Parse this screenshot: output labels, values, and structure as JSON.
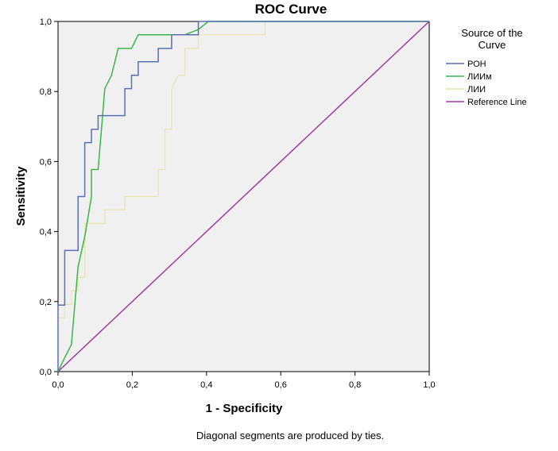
{
  "chart_data": {
    "type": "line",
    "title": "ROC Curve",
    "xlabel": "1 - Specificity",
    "ylabel": "Sensitivity",
    "xlim": [
      0,
      1
    ],
    "ylim": [
      0,
      1
    ],
    "xticks": [
      0,
      0.2,
      0.4,
      0.6,
      0.8,
      1.0
    ],
    "yticks": [
      0,
      0.2,
      0.4,
      0.6,
      0.8,
      1.0
    ],
    "xtick_labels": [
      "0,0",
      "0,2",
      "0,4",
      "0,6",
      "0,8",
      "1,0"
    ],
    "ytick_labels": [
      "0,0",
      "0,2",
      "0,4",
      "0,6",
      "0,8",
      "1,0"
    ],
    "grid": false,
    "legend": {
      "title": "Source of the Curve",
      "position": "right"
    },
    "footnote": "Diagonal segments are produced by ties.",
    "series": [
      {
        "name": "РОН",
        "color": "#5a6fb5",
        "points": [
          [
            0,
            0
          ],
          [
            0,
            0.19
          ],
          [
            0.018,
            0.19
          ],
          [
            0.018,
            0.346
          ],
          [
            0.054,
            0.346
          ],
          [
            0.054,
            0.5
          ],
          [
            0.072,
            0.5
          ],
          [
            0.072,
            0.654
          ],
          [
            0.09,
            0.654
          ],
          [
            0.09,
            0.692
          ],
          [
            0.108,
            0.692
          ],
          [
            0.108,
            0.731
          ],
          [
            0.18,
            0.731
          ],
          [
            0.18,
            0.808
          ],
          [
            0.198,
            0.808
          ],
          [
            0.198,
            0.846
          ],
          [
            0.216,
            0.846
          ],
          [
            0.216,
            0.885
          ],
          [
            0.27,
            0.885
          ],
          [
            0.27,
            0.923
          ],
          [
            0.306,
            0.923
          ],
          [
            0.306,
            0.962
          ],
          [
            0.378,
            0.962
          ],
          [
            0.378,
            1.0
          ],
          [
            1.0,
            1.0
          ]
        ]
      },
      {
        "name": "ЛИИм",
        "color": "#3cb54a",
        "points": [
          [
            0,
            0
          ],
          [
            0.018,
            0.04
          ],
          [
            0.036,
            0.077
          ],
          [
            0.054,
            0.3
          ],
          [
            0.072,
            0.385
          ],
          [
            0.09,
            0.5
          ],
          [
            0.09,
            0.577
          ],
          [
            0.108,
            0.577
          ],
          [
            0.126,
            0.808
          ],
          [
            0.144,
            0.846
          ],
          [
            0.162,
            0.923
          ],
          [
            0.198,
            0.923
          ],
          [
            0.216,
            0.962
          ],
          [
            0.288,
            0.962
          ],
          [
            0.342,
            0.962
          ],
          [
            0.378,
            0.977
          ],
          [
            0.405,
            1.0
          ],
          [
            1.0,
            1.0
          ]
        ]
      },
      {
        "name": "ЛИИ",
        "color": "#e6e6b2",
        "points": [
          [
            0,
            0.154
          ],
          [
            0.018,
            0.154
          ],
          [
            0.018,
            0.192
          ],
          [
            0.036,
            0.192
          ],
          [
            0.036,
            0.231
          ],
          [
            0.054,
            0.231
          ],
          [
            0.054,
            0.269
          ],
          [
            0.072,
            0.269
          ],
          [
            0.072,
            0.423
          ],
          [
            0.126,
            0.423
          ],
          [
            0.126,
            0.462
          ],
          [
            0.18,
            0.462
          ],
          [
            0.18,
            0.5
          ],
          [
            0.27,
            0.5
          ],
          [
            0.27,
            0.577
          ],
          [
            0.288,
            0.577
          ],
          [
            0.288,
            0.692
          ],
          [
            0.306,
            0.692
          ],
          [
            0.306,
            0.808
          ],
          [
            0.324,
            0.846
          ],
          [
            0.342,
            0.846
          ],
          [
            0.342,
            0.923
          ],
          [
            0.378,
            0.923
          ],
          [
            0.378,
            0.962
          ],
          [
            0.558,
            0.962
          ],
          [
            0.558,
            1.0
          ],
          [
            1.0,
            1.0
          ]
        ]
      },
      {
        "name": "Reference Line",
        "color": "#a03aa6",
        "points": [
          [
            0,
            0
          ],
          [
            1,
            1
          ]
        ]
      }
    ]
  }
}
